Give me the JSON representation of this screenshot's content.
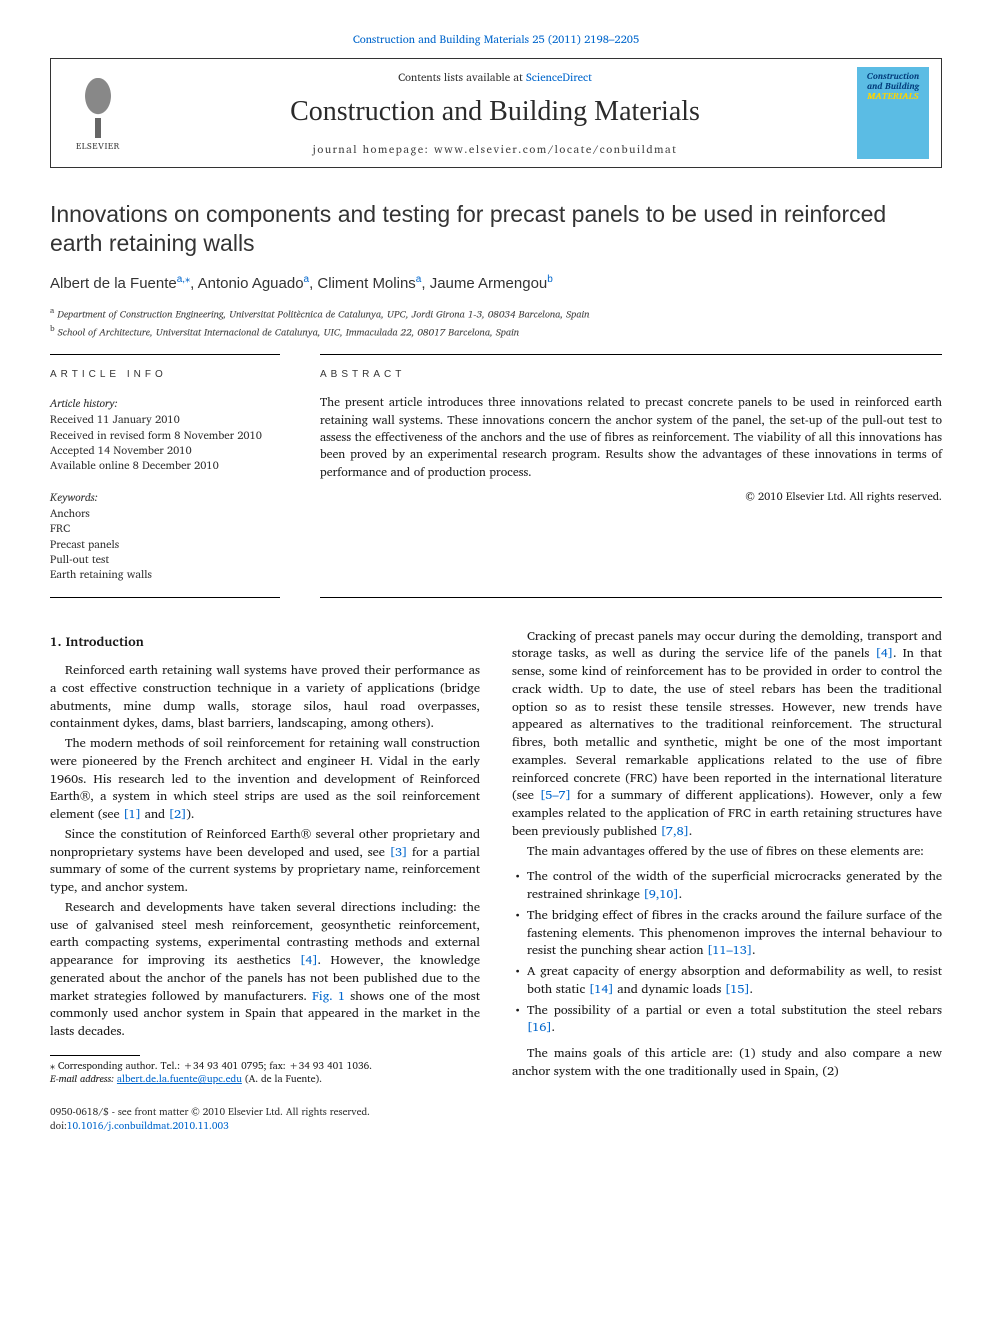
{
  "journal_ref": "Construction and Building Materials 25 (2011) 2198–2205",
  "header": {
    "contents_prefix": "Contents lists available at ",
    "contents_link": "ScienceDirect",
    "journal_title": "Construction and Building Materials",
    "homepage_prefix": "journal homepage: ",
    "homepage_url": "www.elsevier.com/locate/conbuildmat",
    "publisher_name": "ELSEVIER",
    "cover_line1": "Construction",
    "cover_line2": "and Building",
    "cover_line3": "MATERIALS"
  },
  "article": {
    "title": "Innovations on components and testing for precast panels to be used in reinforced earth retaining walls",
    "authors_html": "Albert de la Fuente",
    "author_1": "Albert de la Fuente",
    "author_1_sup": "a,",
    "author_1_star": "⁎",
    "author_2": ", Antonio Aguado",
    "author_2_sup": "a",
    "author_3": ", Climent Molins",
    "author_3_sup": "a",
    "author_4": ", Jaume Armengou",
    "author_4_sup": "b",
    "aff_a": "Department of Construction Engineering, Universitat Politècnica de Catalunya, UPC, Jordi Girona 1-3, 08034 Barcelona, Spain",
    "aff_b": "School of Architecture, Universitat Internacional de Catalunya, UIC, Immaculada 22, 08017 Barcelona, Spain"
  },
  "info": {
    "heading": "article info",
    "history_label": "Article history:",
    "history": [
      "Received 11 January 2010",
      "Received in revised form 8 November 2010",
      "Accepted 14 November 2010",
      "Available online 8 December 2010"
    ],
    "keywords_label": "Keywords:",
    "keywords": [
      "Anchors",
      "FRC",
      "Precast panels",
      "Pull-out test",
      "Earth retaining walls"
    ]
  },
  "abstract": {
    "heading": "abstract",
    "text": "The present article introduces three innovations related to precast concrete panels to be used in reinforced earth retaining wall systems. These innovations concern the anchor system of the panel, the set-up of the pull-out test to assess the effectiveness of the anchors and the use of fibres as reinforcement. The viability of all this innovations has been proved by an experimental research program. Results show the advantages of these innovations in terms of performance and of production process.",
    "copyright": "© 2010 Elsevier Ltd. All rights reserved."
  },
  "body": {
    "section_1_heading": "1. Introduction",
    "p1": "Reinforced earth retaining wall systems have proved their performance as a cost effective construction technique in a variety of applications (bridge abutments, mine dump walls, storage silos, haul road overpasses, containment dykes, dams, blast barriers, landscaping, among others).",
    "p2a": "The modern methods of soil reinforcement for retaining wall construction were pioneered by the French architect and engineer H. Vidal in the early 1960s. His research led to the invention and development of Reinforced Earth®, a system in which steel strips are used as the soil reinforcement element (see ",
    "p2_ref1": "[1]",
    "p2_and": " and ",
    "p2_ref2": "[2]",
    "p2b": ").",
    "p3a": "Since the constitution of Reinforced Earth® several other proprietary and nonproprietary systems have been developed and used, see ",
    "p3_ref": "[3]",
    "p3b": " for a partial summary of some of the current systems by proprietary name, reinforcement type, and anchor system.",
    "p4a": "Research and developments have taken several directions including: the use of galvanised steel mesh reinforcement, geosynthetic reinforcement, earth compacting systems, experimental contrasting methods and external appearance for improving its aesthetics ",
    "p4_ref": "[4]",
    "p4b": ". However, the knowledge generated about the anchor of the panels has not been published due to the market strategies followed by manufacturers. ",
    "p4_figref": "Fig. 1",
    "p4c": " shows one of the most commonly used anchor system in Spain that appeared in the market in the lasts decades.",
    "p5a": "Cracking of precast panels may occur during the demolding, transport and storage tasks, as well as during the service life of the panels ",
    "p5_ref1": "[4]",
    "p5b": ". In that sense, some kind of reinforcement has to be provided in order to control the crack width. Up to date, the use of steel rebars has been the traditional option so as to resist these tensile stresses. However, new trends have appeared as alternatives to the traditional reinforcement. The structural fibres, both metallic and synthetic, might be one of the most important examples. Several remarkable applications related to the use of fibre reinforced concrete (FRC) have been reported in the international literature (see ",
    "p5_ref2": "[5–7]",
    "p5c": " for a summary of different applications). However, only a few examples related to the application of FRC in earth retaining structures have been previously published ",
    "p5_ref3": "[7,8]",
    "p5d": ".",
    "p6": "The main advantages offered by the use of fibres on these elements are:",
    "bullets": [
      {
        "a": "The control of the width of the superficial microcracks generated by the restrained shrinkage ",
        "ref": "[9,10]",
        "b": "."
      },
      {
        "a": "The bridging effect of fibres in the cracks around the failure surface of the fastening elements. This phenomenon improves the internal behaviour to resist the punching shear action ",
        "ref": "[11–13]",
        "b": "."
      },
      {
        "a": "A great capacity of energy absorption and deformability as well, to resist both static ",
        "ref": "[14]",
        "mid": " and dynamic loads ",
        "ref2": "[15]",
        "b": "."
      },
      {
        "a": "The possibility of a partial or even a total substitution the steel rebars ",
        "ref": "[16]",
        "b": "."
      }
    ],
    "p7": "The mains goals of this article are: (1) study and also compare a new anchor system with the one traditionally used in Spain, (2)"
  },
  "footnote": {
    "corr": "⁎ Corresponding author. Tel.: +34 93 401 0795; fax: +34 93 401 1036.",
    "email_label": "E-mail address: ",
    "email": "albert.de.la.fuente@upc.edu",
    "email_suffix": " (A. de la Fuente)."
  },
  "footer": {
    "issn_line": "0950-0618/$ - see front matter © 2010 Elsevier Ltd. All rights reserved.",
    "doi_prefix": "doi:",
    "doi": "10.1016/j.conbuildmat.2010.11.003"
  }
}
